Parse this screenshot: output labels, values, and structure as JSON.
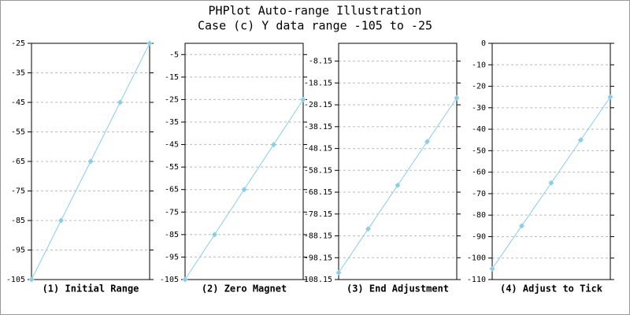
{
  "title": "PHPlot Auto-range Illustration",
  "subtitle": "Case (c) Y data range -105 to -25",
  "chart_data": [
    {
      "type": "line",
      "title": "(1) Initial Range",
      "categories": [
        null,
        null,
        null,
        null,
        null
      ],
      "values": [
        -105,
        -85,
        -65,
        -45,
        -25
      ],
      "color": "#87ceeb",
      "ylim": [
        -105,
        -25
      ],
      "yticks": [
        -105,
        -95,
        -85,
        -75,
        -65,
        -55,
        -45,
        -35,
        -25
      ],
      "grid": true
    },
    {
      "type": "line",
      "title": "(2) Zero Magnet",
      "categories": [
        null,
        null,
        null,
        null,
        null
      ],
      "values": [
        -105,
        -85,
        -65,
        -45,
        -25
      ],
      "color": "#87ceeb",
      "ylim": [
        -105,
        0
      ],
      "yticks": [
        -105,
        -95,
        -85,
        -75,
        -65,
        -55,
        -45,
        -35,
        -25,
        -15,
        -5
      ],
      "grid": true
    },
    {
      "type": "line",
      "title": "(3) End Adjustment",
      "categories": [
        null,
        null,
        null,
        null,
        null
      ],
      "values": [
        -105,
        -85,
        -65,
        -45,
        -25
      ],
      "color": "#87ceeb",
      "ylim": [
        -108.15,
        0
      ],
      "yticks": [
        -108.15,
        -98.15,
        -88.15,
        -78.15,
        -68.15,
        -58.15,
        -48.15,
        -38.15,
        -28.15,
        -18.15,
        -8.15
      ],
      "grid": true
    },
    {
      "type": "line",
      "title": "(4) Adjust to Tick",
      "categories": [
        null,
        null,
        null,
        null,
        null
      ],
      "values": [
        -105,
        -85,
        -65,
        -45,
        -25
      ],
      "color": "#87ceeb",
      "ylim": [
        -110,
        0
      ],
      "yticks": [
        -110,
        -100,
        -90,
        -80,
        -70,
        -60,
        -50,
        -40,
        -30,
        -20,
        -10,
        0
      ],
      "grid": true
    }
  ]
}
